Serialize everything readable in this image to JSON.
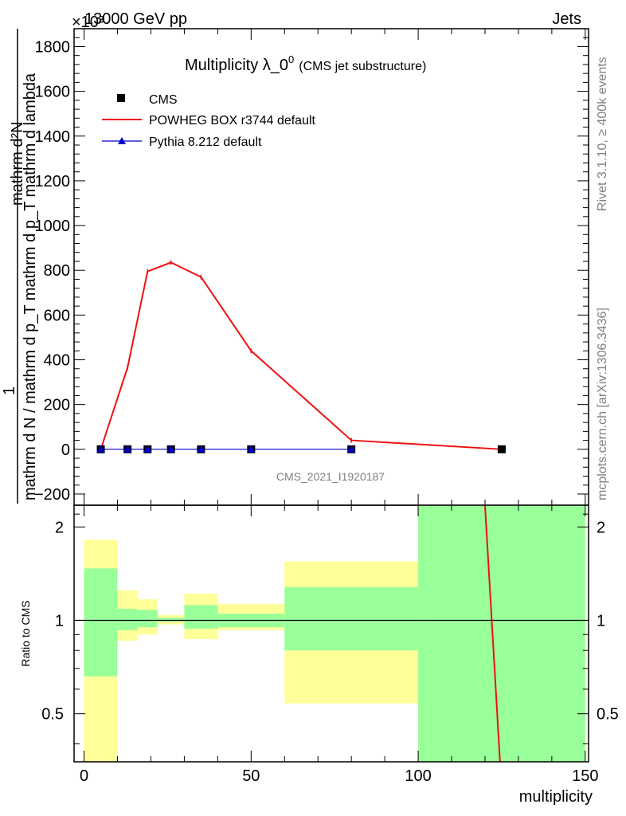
{
  "header": {
    "left": "13000 GeV pp",
    "right": "Jets",
    "exponent": "×10³"
  },
  "side_labels": {
    "rivet": "Rivet 3.1.10, ≥ 400k events",
    "mcplots": "mcplots.cern.ch [arXiv:1306.3436]"
  },
  "colors": {
    "cms": "#000000",
    "powheg": "#ee1111",
    "pythia": "#0000cc",
    "band_inner": "#99ff99",
    "band_outer": "#ffff99"
  },
  "chart_data": [
    {
      "type": "line",
      "title_main": "Multiplicity λ_0",
      "title_sup": "0",
      "title_sub": "(CMS jet substructure)",
      "watermark": "CMS_2021_I1920187",
      "ylabel_num": "1",
      "ylabel_den": "mathrm d N / mathrm d p_T mathrm d p_T mathrm d lambda",
      "ylabel_top": "mathrm d²N",
      "xlim": [
        -3,
        151
      ],
      "ylim": [
        -250,
        1880
      ],
      "yticks": [
        -200,
        0,
        200,
        400,
        600,
        800,
        1000,
        1200,
        1400,
        1600,
        1800
      ],
      "ytick_labels": [
        "−200",
        "0",
        "200",
        "400",
        "600",
        "800",
        "1000",
        "1200",
        "1400",
        "1600",
        "1800"
      ],
      "legend": {
        "position": "top-left",
        "items": [
          {
            "label": "CMS",
            "marker": "square",
            "color": "#000000"
          },
          {
            "label": "POWHEG BOX r3744 default",
            "marker": "line",
            "color": "#ee1111"
          },
          {
            "label": "Pythia 8.212 default",
            "marker": "triangle",
            "color": "#0000cc"
          }
        ]
      },
      "series": [
        {
          "name": "CMS",
          "x": [
            5,
            13,
            19,
            26,
            35,
            50,
            80,
            125
          ],
          "y": [
            0,
            0,
            0,
            0,
            0,
            0,
            0,
            0
          ]
        },
        {
          "name": "POWHEG BOX r3744 default",
          "x": [
            5,
            13,
            19,
            26,
            35,
            50,
            80,
            125
          ],
          "y": [
            0,
            365,
            795,
            835,
            770,
            440,
            40,
            0
          ]
        },
        {
          "name": "Pythia 8.212 default",
          "x": [
            5,
            13,
            19,
            26,
            35,
            50,
            80
          ],
          "y": [
            0,
            0,
            0,
            0,
            0,
            0,
            0
          ]
        }
      ]
    },
    {
      "type": "line",
      "ylabel": "Ratio to CMS",
      "xlabel": "multiplicity",
      "xlim": [
        -3,
        151
      ],
      "ylim": [
        0.35,
        2.35
      ],
      "xticks": [
        0,
        50,
        100,
        150
      ],
      "xtick_labels": [
        "0",
        "50",
        "100",
        "150"
      ],
      "yticks": [
        0.5,
        1,
        2
      ],
      "ytick_labels": [
        "0.5",
        "1",
        "2"
      ],
      "bands": [
        {
          "x0": 0,
          "x1": 10,
          "inner": [
            0.66,
            1.47
          ],
          "outer": [
            0.3,
            1.82
          ]
        },
        {
          "x0": 10,
          "x1": 16,
          "inner": [
            0.93,
            1.09
          ],
          "outer": [
            0.86,
            1.25
          ]
        },
        {
          "x0": 16,
          "x1": 22,
          "inner": [
            0.95,
            1.08
          ],
          "outer": [
            0.9,
            1.17
          ]
        },
        {
          "x0": 22,
          "x1": 30,
          "inner": [
            0.99,
            1.02
          ],
          "outer": [
            0.97,
            1.04
          ]
        },
        {
          "x0": 30,
          "x1": 40,
          "inner": [
            0.94,
            1.12
          ],
          "outer": [
            0.87,
            1.22
          ]
        },
        {
          "x0": 40,
          "x1": 60,
          "inner": [
            0.95,
            1.05
          ],
          "outer": [
            0.93,
            1.13
          ]
        },
        {
          "x0": 60,
          "x1": 100,
          "inner": [
            0.8,
            1.28
          ],
          "outer": [
            0.54,
            1.55
          ]
        },
        {
          "x0": 100,
          "x1": 150,
          "inner": [
            0.3,
            2.5
          ],
          "outer": [
            0.3,
            2.5
          ]
        }
      ],
      "series": [
        {
          "name": "POWHEG BOX r3744 default",
          "x": [
            120,
            124.5
          ],
          "y": [
            2.5,
            0.3
          ]
        }
      ]
    }
  ]
}
